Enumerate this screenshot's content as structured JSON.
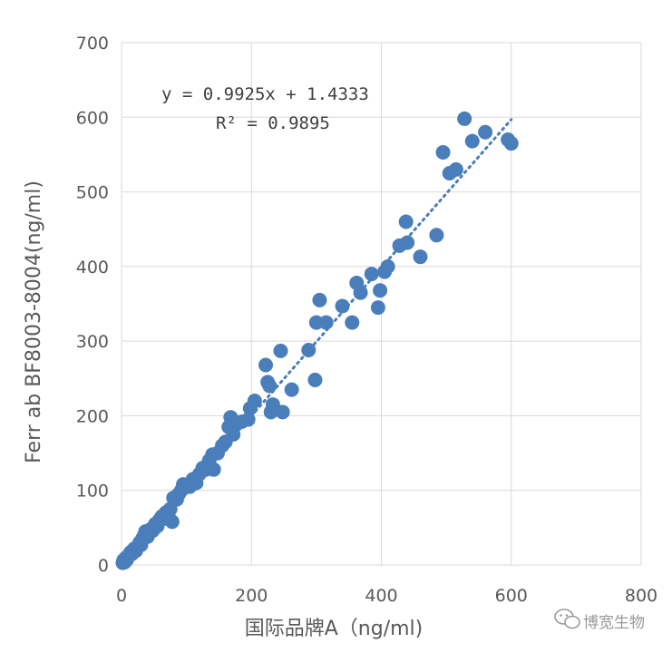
{
  "chart_data": {
    "type": "scatter",
    "xlabel": "国际品牌A（ng/ml)",
    "ylabel": "Ferr ab BF8003-8004(ng/ml)",
    "xlim": [
      0,
      800
    ],
    "ylim": [
      0,
      700
    ],
    "x_ticks": [
      0,
      200,
      400,
      600,
      800
    ],
    "y_ticks": [
      0,
      100,
      200,
      300,
      400,
      500,
      600,
      700
    ],
    "grid": true,
    "legend": "none",
    "trendline": {
      "type": "linear",
      "style": "dotted",
      "slope": 0.9925,
      "intercept": 1.4333,
      "x_range": [
        0,
        600
      ],
      "equation": "y = 0.9925x + 1.4333",
      "r2": "R² = 0.9895"
    },
    "marker_color": "#4a7ebb",
    "series": [
      {
        "points": [
          [
            2,
            3
          ],
          [
            3,
            6
          ],
          [
            5,
            4
          ],
          [
            6,
            9
          ],
          [
            8,
            7
          ],
          [
            10,
            12
          ],
          [
            12,
            14
          ],
          [
            14,
            17
          ],
          [
            16,
            15
          ],
          [
            18,
            20
          ],
          [
            20,
            22
          ],
          [
            22,
            19
          ],
          [
            25,
            25
          ],
          [
            28,
            30
          ],
          [
            30,
            27
          ],
          [
            32,
            35
          ],
          [
            35,
            40
          ],
          [
            37,
            45
          ],
          [
            40,
            38
          ],
          [
            42,
            43
          ],
          [
            45,
            48
          ],
          [
            48,
            46
          ],
          [
            52,
            55
          ],
          [
            55,
            52
          ],
          [
            58,
            60
          ],
          [
            62,
            65
          ],
          [
            65,
            62
          ],
          [
            68,
            70
          ],
          [
            72,
            68
          ],
          [
            75,
            75
          ],
          [
            78,
            58
          ],
          [
            80,
            90
          ],
          [
            85,
            88
          ],
          [
            88,
            95
          ],
          [
            92,
            100
          ],
          [
            95,
            108
          ],
          [
            105,
            105
          ],
          [
            110,
            115
          ],
          [
            115,
            110
          ],
          [
            120,
            122
          ],
          [
            125,
            130
          ],
          [
            130,
            128
          ],
          [
            135,
            140
          ],
          [
            140,
            148
          ],
          [
            142,
            128
          ],
          [
            148,
            150
          ],
          [
            155,
            160
          ],
          [
            160,
            165
          ],
          [
            165,
            185
          ],
          [
            168,
            198
          ],
          [
            172,
            175
          ],
          [
            178,
            190
          ],
          [
            185,
            192
          ],
          [
            195,
            195
          ],
          [
            198,
            210
          ],
          [
            205,
            220
          ],
          [
            222,
            268
          ],
          [
            225,
            245
          ],
          [
            228,
            240
          ],
          [
            230,
            205
          ],
          [
            233,
            215
          ],
          [
            245,
            287
          ],
          [
            248,
            205
          ],
          [
            262,
            235
          ],
          [
            288,
            288
          ],
          [
            298,
            248
          ],
          [
            300,
            325
          ],
          [
            305,
            355
          ],
          [
            315,
            325
          ],
          [
            340,
            347
          ],
          [
            355,
            325
          ],
          [
            362,
            378
          ],
          [
            368,
            365
          ],
          [
            385,
            390
          ],
          [
            395,
            345
          ],
          [
            398,
            368
          ],
          [
            405,
            393
          ],
          [
            410,
            400
          ],
          [
            428,
            428
          ],
          [
            438,
            460
          ],
          [
            440,
            432
          ],
          [
            460,
            413
          ],
          [
            485,
            442
          ],
          [
            495,
            553
          ],
          [
            505,
            525
          ],
          [
            515,
            530
          ],
          [
            528,
            598
          ],
          [
            540,
            568
          ],
          [
            560,
            580
          ],
          [
            595,
            570
          ],
          [
            600,
            565
          ]
        ]
      }
    ]
  },
  "watermark": {
    "text": "博宽生物",
    "icon": "wechat-icon"
  }
}
